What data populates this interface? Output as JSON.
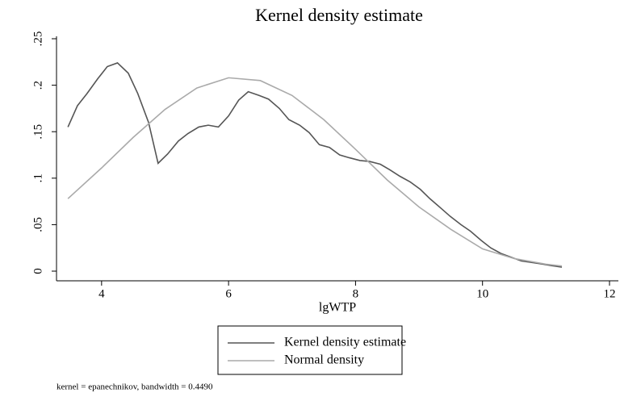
{
  "chart_data": {
    "type": "line",
    "title": "Kernel density estimate",
    "x_label": "lgWTP",
    "note": "kernel = epanechnikov, bandwidth = 0.4490",
    "xlim": [
      3.29,
      12.14
    ],
    "ylim": [
      -0.0104,
      0.2526
    ],
    "xticks": [
      4,
      6,
      8,
      10,
      12
    ],
    "yticks": [
      0,
      {
        "value": 0.05,
        "label": ".05"
      },
      {
        "value": 0.1,
        "label": ".1"
      },
      {
        "value": 0.15,
        "label": ".15"
      },
      {
        "value": 0.2,
        "label": ".2"
      },
      {
        "value": 0.25,
        "label": ".25"
      }
    ],
    "legend": "bottom",
    "series": [
      {
        "name": "Kernel density estimate",
        "color": "#555555",
        "x": [
          3.47,
          3.62,
          3.77,
          3.94,
          4.09,
          4.25,
          4.42,
          4.57,
          4.74,
          4.89,
          5.04,
          5.21,
          5.36,
          5.53,
          5.68,
          5.84,
          6.0,
          6.16,
          6.31,
          6.48,
          6.63,
          6.8,
          6.95,
          7.12,
          7.27,
          7.43,
          7.59,
          7.75,
          7.9,
          8.07,
          8.22,
          8.39,
          8.54,
          8.7,
          8.86,
          9.02,
          9.17,
          9.34,
          9.49,
          9.66,
          9.81,
          9.98,
          10.13,
          10.29,
          10.45,
          10.61,
          10.76,
          10.93,
          11.08,
          11.25
        ],
        "values": [
          0.155,
          0.178,
          0.191,
          0.207,
          0.22,
          0.224,
          0.213,
          0.191,
          0.16,
          0.116,
          0.126,
          0.14,
          0.148,
          0.155,
          0.157,
          0.155,
          0.167,
          0.184,
          0.193,
          0.189,
          0.185,
          0.175,
          0.163,
          0.157,
          0.149,
          0.136,
          0.133,
          0.125,
          0.122,
          0.119,
          0.118,
          0.115,
          0.109,
          0.102,
          0.096,
          0.088,
          0.078,
          0.068,
          0.059,
          0.05,
          0.043,
          0.033,
          0.025,
          0.019,
          0.015,
          0.011,
          0.0095,
          0.0078,
          0.006,
          0.0043
        ]
      },
      {
        "name": "Normal density",
        "color": "#aaaaaa",
        "x": [
          3.47,
          4,
          4.5,
          5,
          5.5,
          6,
          6.5,
          7,
          7.5,
          8,
          8.5,
          9,
          9.5,
          10,
          10.5,
          11,
          11.25
        ],
        "values": [
          0.078,
          0.111,
          0.144,
          0.174,
          0.197,
          0.208,
          0.205,
          0.189,
          0.163,
          0.131,
          0.098,
          0.069,
          0.045,
          0.024,
          0.0135,
          0.0075,
          0.0055
        ]
      }
    ]
  }
}
